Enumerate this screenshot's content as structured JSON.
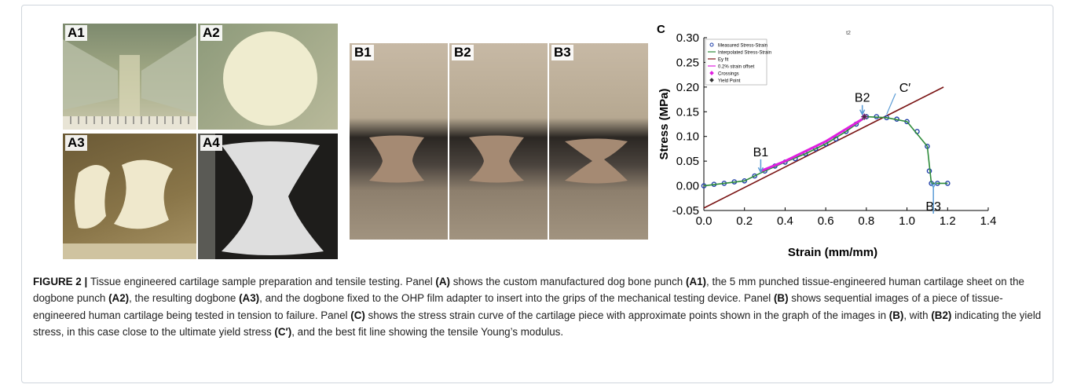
{
  "panels": [
    {
      "label": "A1"
    },
    {
      "label": "A2"
    },
    {
      "label": "A3"
    },
    {
      "label": "A4"
    },
    {
      "label": "B1"
    },
    {
      "label": "B2"
    },
    {
      "label": "B3"
    }
  ],
  "chart_label": "C",
  "chart_data": {
    "type": "line",
    "title": "t2",
    "x_label": "Strain (mm/mm)",
    "y_label": "Stress (MPa)",
    "xlim": [
      0,
      1.4
    ],
    "ylim": [
      -0.05,
      0.3
    ],
    "xticks": [
      {
        "value": 0,
        "label": "0.0"
      },
      0.2,
      0.4,
      0.6,
      0.8,
      {
        "value": 1,
        "label": "1.0"
      },
      1.2,
      1.4
    ],
    "yticks": [
      -0.05,
      {
        "value": 0,
        "label": "0.00"
      },
      0.05,
      {
        "value": 0.1,
        "label": "0.10"
      },
      0.15,
      {
        "value": 0.2,
        "label": "0.20"
      },
      0.25,
      {
        "value": 0.3,
        "label": "0.30"
      }
    ],
    "legend": "upper left",
    "series": [
      {
        "name": "Measured Stress-Strain",
        "color": "#1f3fa8",
        "marker": "circle",
        "x": [
          0,
          0.05,
          0.1,
          0.15,
          0.2,
          0.25,
          0.3,
          0.35,
          0.4,
          0.45,
          0.5,
          0.55,
          0.6,
          0.65,
          0.7,
          0.75,
          0.8,
          0.85,
          0.9,
          0.95,
          1.0,
          1.05,
          1.1,
          1.11,
          1.12,
          1.15,
          1.2
        ],
        "values": [
          0,
          0.003,
          0.005,
          0.008,
          0.01,
          0.02,
          0.03,
          0.04,
          0.048,
          0.055,
          0.065,
          0.075,
          0.085,
          0.095,
          0.11,
          0.125,
          0.14,
          0.14,
          0.138,
          0.135,
          0.13,
          0.11,
          0.08,
          0.03,
          0.005,
          0.005,
          0.005
        ]
      },
      {
        "name": "Interpolated Stress-Strain",
        "color": "#2e8b3a",
        "marker": "line",
        "x": [
          0,
          0.1,
          0.2,
          0.3,
          0.4,
          0.5,
          0.6,
          0.7,
          0.8,
          0.9,
          1.0,
          1.1,
          1.12,
          1.2
        ],
        "values": [
          0,
          0.005,
          0.01,
          0.03,
          0.048,
          0.065,
          0.085,
          0.11,
          0.14,
          0.138,
          0.13,
          0.08,
          0.005,
          0.005
        ]
      },
      {
        "name": "Ey fit",
        "color": "#7a1414",
        "marker": "line",
        "x": [
          0,
          1.18
        ],
        "values": [
          -0.045,
          0.2
        ]
      },
      {
        "name": "0.2% strain offset",
        "color": "#e020e0",
        "marker": "line",
        "x": [
          0.28,
          0.4,
          0.6,
          0.78
        ],
        "values": [
          0.03,
          0.05,
          0.09,
          0.135
        ]
      },
      {
        "name": "Crossings",
        "color": "#e020e0",
        "marker": "diamond",
        "x": [
          0.79
        ],
        "values": [
          0.14
        ]
      },
      {
        "name": "Yield Point",
        "color": "#333333",
        "marker": "star",
        "x": [
          0.79
        ],
        "values": [
          0.14
        ]
      }
    ],
    "annotations": [
      {
        "text": "B1"
      },
      {
        "text": "B2"
      },
      {
        "text": "C′"
      },
      {
        "text": "B3"
      }
    ]
  },
  "caption": [
    {
      "text": "FIGURE 2 | ",
      "bold": true
    },
    {
      "text": "Tissue engineered cartilage sample preparation and tensile testing. Panel ",
      "bold": false
    },
    {
      "text": "(A)",
      "bold": true
    },
    {
      "text": " shows the custom manufactured dog bone punch ",
      "bold": false
    },
    {
      "text": "(A1)",
      "bold": true
    },
    {
      "text": ", the 5 mm punched tissue-engineered human cartilage sheet on the dogbone punch ",
      "bold": false
    },
    {
      "text": "(A2)",
      "bold": true
    },
    {
      "text": ", the resulting dogbone ",
      "bold": false
    },
    {
      "text": "(A3)",
      "bold": true
    },
    {
      "text": ", and the dogbone fixed to the OHP film adapter to insert into the grips of the mechanical testing device. Panel ",
      "bold": false
    },
    {
      "text": "(B)",
      "bold": true
    },
    {
      "text": " shows sequential images of a piece of tissue-engineered human cartilage being tested in tension to failure. Panel ",
      "bold": false
    },
    {
      "text": "(C)",
      "bold": true
    },
    {
      "text": " shows the stress strain curve of the cartilage piece with approximate points shown in the graph of the images in ",
      "bold": false
    },
    {
      "text": "(B)",
      "bold": true
    },
    {
      "text": ", with ",
      "bold": false
    },
    {
      "text": "(B2)",
      "bold": true
    },
    {
      "text": " indicating the yield stress, in this case close to the ultimate yield stress ",
      "bold": false
    },
    {
      "text": "(C′)",
      "bold": true
    },
    {
      "text": ", and the best fit line showing the tensile Young’s modulus.",
      "bold": false
    }
  ]
}
